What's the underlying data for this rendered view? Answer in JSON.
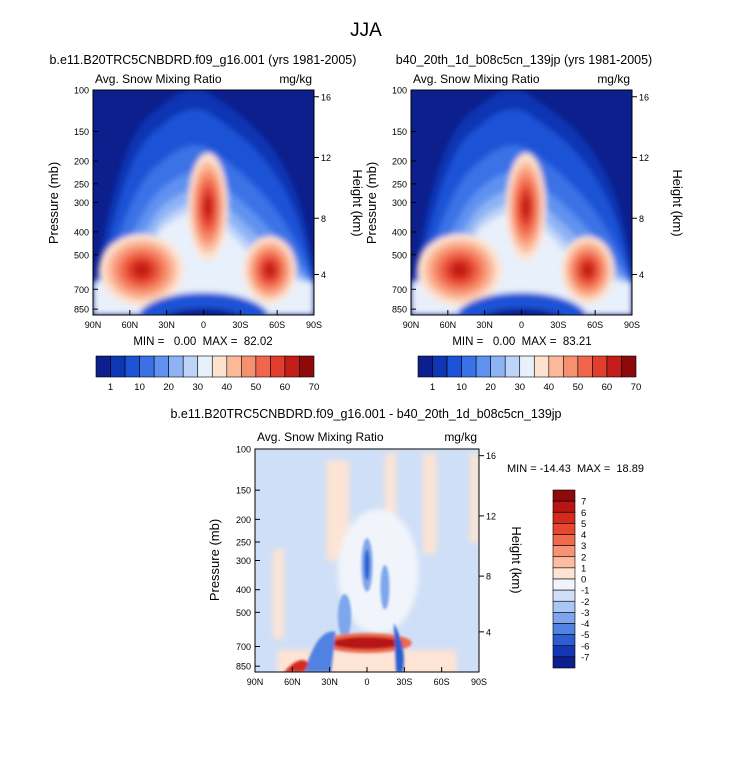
{
  "page_title": "JJA",
  "chart_data": [
    {
      "type": "heatmap",
      "title": "b.e11.B20TRC5CNBDRD.f09_g16.001 (yrs 1981-2005)",
      "subtitle_left": "Avg. Snow Mixing Ratio",
      "subtitle_right": "mg/kg",
      "ylabel": "Pressure (mb)",
      "ylabel_right": "Height (km)",
      "x_ticks": [
        "90N",
        "60N",
        "30N",
        "0",
        "30S",
        "60S",
        "90S"
      ],
      "y_ticks": [
        "100",
        "150",
        "200",
        "250",
        "300",
        "400",
        "500",
        "700",
        "850"
      ],
      "y_ticks_right": [
        "16",
        "12",
        "8",
        "4"
      ],
      "stats": "MIN =   0.00  MAX =  82.02",
      "min": 0.0,
      "max": 82.02,
      "colorbar": {
        "labels": [
          "1",
          "10",
          "20",
          "30",
          "40",
          "50",
          "60",
          "70"
        ],
        "colors": [
          "#0c1f8c",
          "#0f36b4",
          "#1b53d6",
          "#3a72e6",
          "#5f92f0",
          "#8db3f5",
          "#bdd3f8",
          "#e8f0fb",
          "#fde2d0",
          "#fbb99a",
          "#f7906f",
          "#f0664c",
          "#e03d2c",
          "#c21d18",
          "#8c0a0a"
        ]
      }
    },
    {
      "type": "heatmap",
      "title": "b40_20th_1d_b08c5cn_139jp (yrs 1981-2005)",
      "subtitle_left": "Avg. Snow Mixing Ratio",
      "subtitle_right": "mg/kg",
      "ylabel": "Pressure (mb)",
      "ylabel_right": "Height (km)",
      "x_ticks": [
        "90N",
        "60N",
        "30N",
        "0",
        "30S",
        "60S",
        "90S"
      ],
      "y_ticks": [
        "100",
        "150",
        "200",
        "250",
        "300",
        "400",
        "500",
        "700",
        "850"
      ],
      "y_ticks_right": [
        "16",
        "12",
        "8",
        "4"
      ],
      "stats": "MIN =   0.00  MAX =  83.21",
      "min": 0.0,
      "max": 83.21,
      "colorbar": {
        "labels": [
          "1",
          "10",
          "20",
          "30",
          "40",
          "50",
          "60",
          "70"
        ],
        "colors": [
          "#0c1f8c",
          "#0f36b4",
          "#1b53d6",
          "#3a72e6",
          "#5f92f0",
          "#8db3f5",
          "#bdd3f8",
          "#e8f0fb",
          "#fde2d0",
          "#fbb99a",
          "#f7906f",
          "#f0664c",
          "#e03d2c",
          "#c21d18",
          "#8c0a0a"
        ]
      }
    },
    {
      "type": "heatmap",
      "title": "b.e11.B20TRC5CNBDRD.f09_g16.001 - b40_20th_1d_b08c5cn_139jp",
      "subtitle_left": "Avg. Snow Mixing Ratio",
      "subtitle_right": "mg/kg",
      "ylabel": "Pressure (mb)",
      "ylabel_right": "Height (km)",
      "x_ticks": [
        "90N",
        "60N",
        "30N",
        "0",
        "30S",
        "60S",
        "90S"
      ],
      "y_ticks": [
        "100",
        "150",
        "200",
        "250",
        "300",
        "400",
        "500",
        "700",
        "850"
      ],
      "y_ticks_right": [
        "16",
        "12",
        "8",
        "4"
      ],
      "stats": "MIN = -14.43  MAX =  18.89",
      "min": -14.43,
      "max": 18.89,
      "colorbar": {
        "labels": [
          "7",
          "6",
          "5",
          "4",
          "3",
          "2",
          "1",
          "0",
          "-1",
          "-2",
          "-3",
          "-4",
          "-5",
          "-6",
          "-7"
        ],
        "colors": [
          "#8c0a0a",
          "#b81414",
          "#d42a1e",
          "#e8472f",
          "#f26a4c",
          "#f79374",
          "#fbbc9f",
          "#fde4d4",
          "#f1f5fb",
          "#cfdff7",
          "#aac6f3",
          "#7ea6ec",
          "#5182e2",
          "#2c5dd3",
          "#1438b5",
          "#0c1f8c"
        ]
      }
    }
  ]
}
